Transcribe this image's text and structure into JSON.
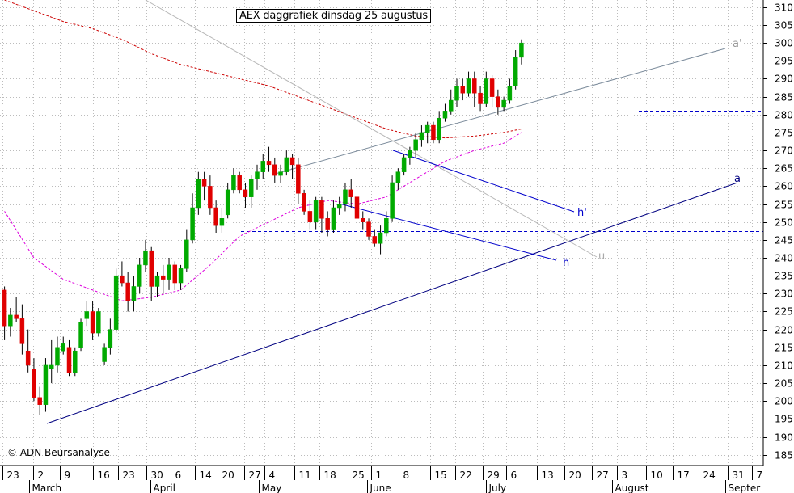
{
  "title": "AEX daggrafiek dinsdag 25 augustus",
  "copyright": "© ADN Beursanalyse",
  "chart_data": {
    "type": "candlestick",
    "y_axis": {
      "min": 182,
      "max": 312,
      "step": 5,
      "position": "right"
    },
    "grid": "dotted",
    "x_tick_labels": [
      "23",
      "2",
      "9",
      "16",
      "23",
      "30",
      "6",
      "14",
      "20",
      "27",
      "4",
      "11",
      "18",
      "25",
      "1",
      "8",
      "15",
      "22",
      "29",
      "6",
      "13",
      "20",
      "27",
      "3",
      "10",
      "17",
      "24",
      "31",
      "7"
    ],
    "month_labels": [
      "March",
      "April",
      "May",
      "June",
      "July",
      "August",
      "Septer"
    ],
    "horizontal_levels": [
      291.5,
      281,
      271.5,
      247.5
    ],
    "trend_labels": [
      "a'",
      "a",
      "h'",
      "h",
      "u"
    ],
    "colors": {
      "up": "#00aa00",
      "down": "#e00000",
      "ma_long": "#cc0000",
      "ma_short": "#dd00dd",
      "levels": "#0000cc",
      "support": "#000080"
    },
    "candles": [
      [
        231,
        232,
        217,
        221
      ],
      [
        221,
        226,
        218,
        224
      ],
      [
        224,
        229,
        222,
        223
      ],
      [
        223,
        227,
        213,
        216
      ],
      [
        214,
        220,
        208,
        210
      ],
      [
        209,
        212,
        200,
        201
      ],
      [
        201,
        204,
        196,
        199
      ],
      [
        199,
        212,
        197,
        210
      ],
      [
        209,
        217,
        205,
        210
      ],
      [
        210,
        218,
        208,
        215
      ],
      [
        214,
        218,
        213,
        216
      ],
      [
        215,
        217,
        207,
        208
      ],
      [
        208,
        215,
        207,
        214
      ],
      [
        215,
        223,
        214,
        222
      ],
      [
        223,
        228,
        221,
        225
      ],
      [
        225,
        228,
        217,
        219
      ],
      [
        219,
        226,
        218,
        225
      ],
      [
        211,
        216,
        210,
        215
      ],
      [
        215,
        223,
        213,
        220
      ],
      [
        220,
        237,
        219,
        235
      ],
      [
        235,
        239,
        232,
        233
      ],
      [
        233,
        236,
        225,
        228
      ],
      [
        228,
        235,
        225,
        232
      ],
      [
        232,
        240,
        230,
        238
      ],
      [
        238,
        245,
        236,
        242
      ],
      [
        242,
        243,
        228,
        232
      ],
      [
        232,
        236,
        229,
        235
      ],
      [
        235,
        238,
        230,
        234
      ],
      [
        234,
        240,
        231,
        238
      ],
      [
        238,
        239,
        231,
        233
      ],
      [
        233,
        238,
        231,
        237
      ],
      [
        237,
        248,
        236,
        245
      ],
      [
        245,
        258,
        244,
        254
      ],
      [
        254,
        264,
        252,
        262
      ],
      [
        262,
        264,
        256,
        260
      ],
      [
        260,
        263,
        252,
        254
      ],
      [
        254,
        256,
        247,
        249
      ],
      [
        249,
        254,
        247,
        251
      ],
      [
        252,
        261,
        251,
        259
      ],
      [
        259,
        265,
        258,
        263
      ],
      [
        263,
        264,
        258,
        259
      ],
      [
        259,
        261,
        254,
        257
      ],
      [
        257,
        263,
        254,
        262
      ],
      [
        262,
        266,
        259,
        264
      ],
      [
        264,
        269,
        262,
        267
      ],
      [
        267,
        271,
        264,
        266
      ],
      [
        266,
        268,
        261,
        263
      ],
      [
        263,
        266,
        261,
        264
      ],
      [
        264,
        270,
        263,
        268
      ],
      [
        268,
        269,
        262,
        266
      ],
      [
        266,
        268,
        255,
        258
      ],
      [
        258,
        259,
        252,
        253
      ],
      [
        253,
        256,
        248,
        250
      ],
      [
        250,
        257,
        248,
        256
      ],
      [
        256,
        257,
        247,
        251
      ],
      [
        251,
        253,
        246,
        248
      ],
      [
        248,
        256,
        247,
        254
      ],
      [
        254,
        257,
        252,
        255
      ],
      [
        255,
        261,
        253,
        259
      ],
      [
        259,
        262,
        254,
        257
      ],
      [
        257,
        258,
        249,
        251
      ],
      [
        251,
        253,
        248,
        250
      ],
      [
        250,
        251,
        245,
        246
      ],
      [
        246,
        248,
        243,
        244
      ],
      [
        244,
        249,
        241,
        247
      ],
      [
        247,
        253,
        246,
        251
      ],
      [
        251,
        263,
        250,
        261
      ],
      [
        261,
        265,
        259,
        264
      ],
      [
        264,
        269,
        263,
        268
      ],
      [
        268,
        271,
        266,
        270
      ],
      [
        270,
        275,
        268,
        273
      ],
      [
        273,
        277,
        271,
        275
      ],
      [
        275,
        278,
        272,
        277
      ],
      [
        277,
        278,
        272,
        273
      ],
      [
        273,
        281,
        272,
        279
      ],
      [
        279,
        283,
        278,
        281
      ],
      [
        281,
        287,
        280,
        284
      ],
      [
        284,
        290,
        282,
        288
      ],
      [
        288,
        290,
        284,
        286
      ],
      [
        286,
        292,
        285,
        290
      ],
      [
        290,
        292,
        282,
        286
      ],
      [
        286,
        288,
        281,
        283
      ],
      [
        283,
        292,
        282,
        290
      ],
      [
        290,
        291,
        282,
        285
      ],
      [
        285,
        287,
        280,
        282
      ],
      [
        282,
        285,
        281,
        284
      ],
      [
        284,
        290,
        283,
        288
      ],
      [
        288,
        298,
        287,
        296
      ],
      [
        296,
        301,
        294,
        300
      ]
    ],
    "ma_long": [
      [
        0,
        312
      ],
      [
        5,
        309
      ],
      [
        10,
        306
      ],
      [
        15,
        304
      ],
      [
        20,
        301
      ],
      [
        25,
        297
      ],
      [
        30,
        294
      ],
      [
        35,
        292
      ],
      [
        40,
        290
      ],
      [
        45,
        288
      ],
      [
        50,
        285
      ],
      [
        55,
        282
      ],
      [
        60,
        279
      ],
      [
        65,
        276
      ],
      [
        70,
        274
      ],
      [
        75,
        273.5
      ],
      [
        80,
        274
      ],
      [
        85,
        275
      ],
      [
        88,
        276
      ]
    ],
    "ma_short": [
      [
        0,
        253
      ],
      [
        5,
        240
      ],
      [
        10,
        234
      ],
      [
        15,
        231
      ],
      [
        20,
        228
      ],
      [
        25,
        229
      ],
      [
        30,
        231
      ],
      [
        35,
        238
      ],
      [
        40,
        246
      ],
      [
        45,
        250
      ],
      [
        50,
        254
      ],
      [
        55,
        256
      ],
      [
        60,
        255
      ],
      [
        65,
        257
      ],
      [
        70,
        262
      ],
      [
        75,
        267
      ],
      [
        80,
        270
      ],
      [
        85,
        272
      ],
      [
        88,
        275
      ]
    ]
  }
}
